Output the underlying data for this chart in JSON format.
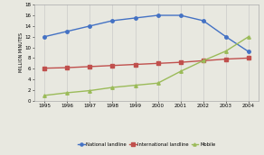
{
  "years": [
    1995,
    1996,
    1997,
    1998,
    1999,
    2000,
    2001,
    2002,
    2003,
    2004
  ],
  "national_landline": [
    12,
    13,
    14,
    15,
    15.5,
    16,
    16,
    15,
    12,
    9.2
  ],
  "international_landline": [
    6.1,
    6.2,
    6.4,
    6.6,
    6.8,
    7.0,
    7.2,
    7.5,
    7.8,
    8.0
  ],
  "mobile": [
    1.0,
    1.5,
    1.9,
    2.5,
    2.9,
    3.3,
    5.5,
    7.5,
    9.3,
    12.0
  ],
  "national_color": "#4472C4",
  "international_color": "#C0504D",
  "mobile_color": "#9BBB59",
  "ylabel": "MILLION MINUTES",
  "ylim": [
    0,
    18
  ],
  "yticks": [
    0,
    2,
    4,
    6,
    8,
    10,
    12,
    14,
    16,
    18
  ],
  "legend_labels": [
    "National landline",
    "International landline",
    "Mobile"
  ],
  "background_color": "#e8e8e0",
  "plot_bg_color": "#e8e8e0"
}
